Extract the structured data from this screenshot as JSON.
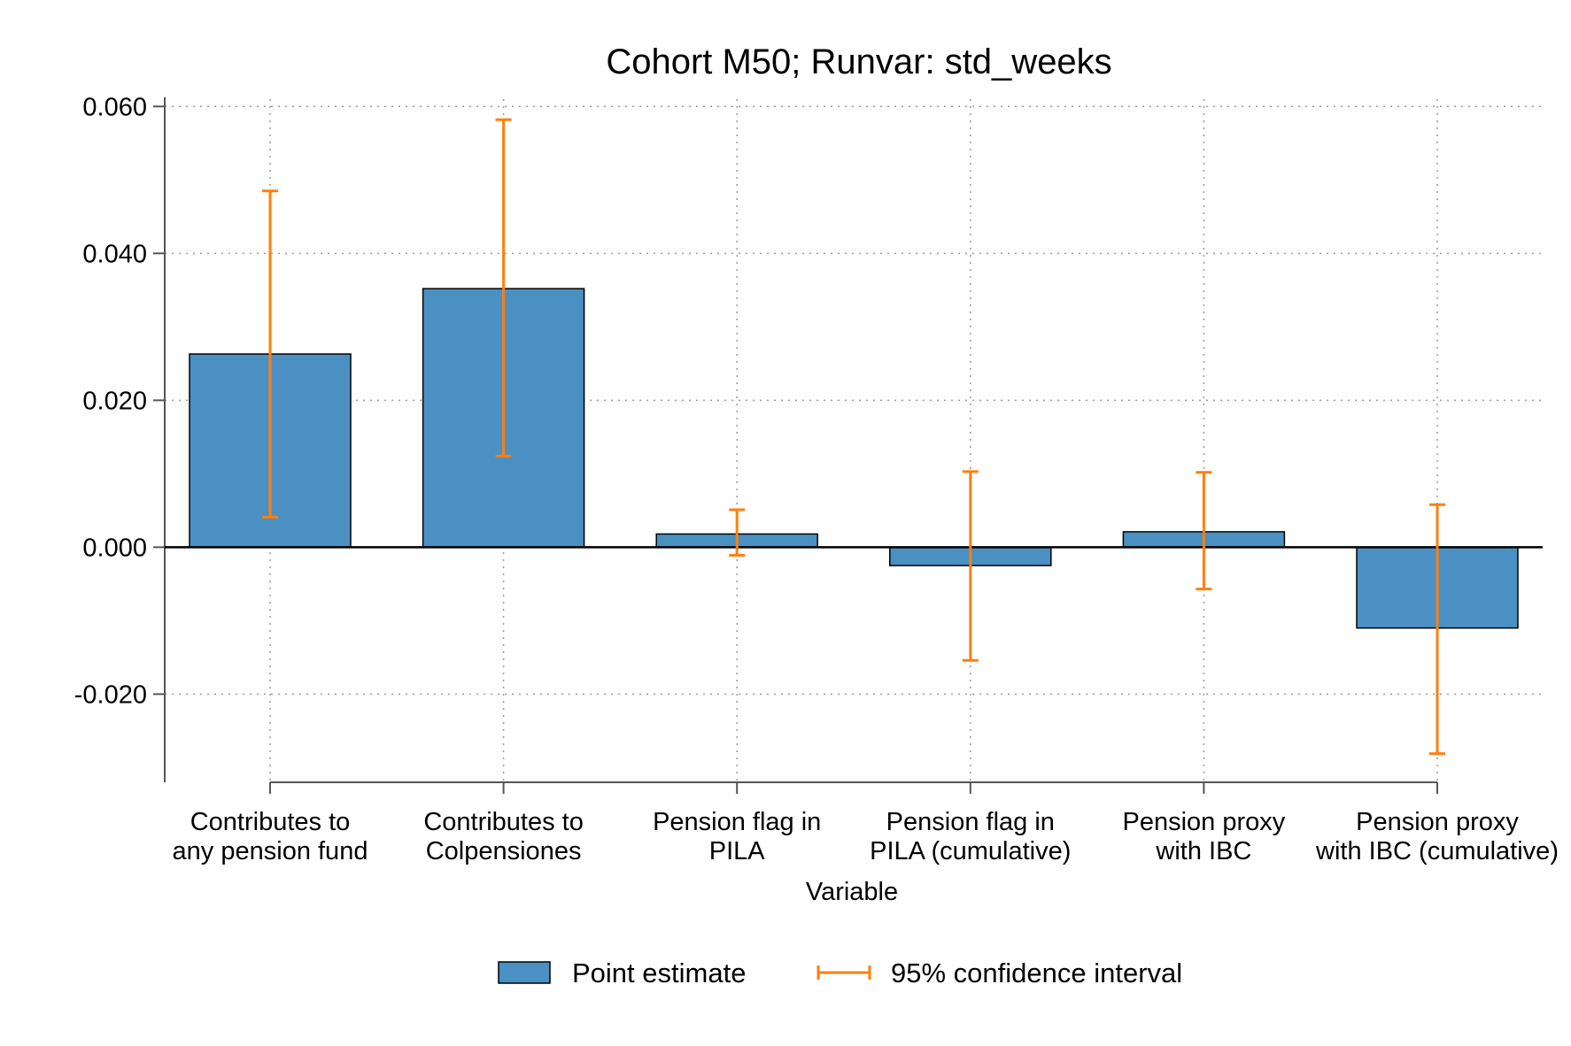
{
  "chart_data": {
    "type": "bar",
    "title": "Cohort M50; Runvar: std_weeks",
    "xlabel": "Variable",
    "ylabel": "",
    "ylim": [
      -0.032,
      0.061
    ],
    "yticks": [
      -0.02,
      0.0,
      0.02,
      0.04,
      0.06
    ],
    "ytick_labels": [
      "-0.020",
      "0.000",
      "0.020",
      "0.040",
      "0.060"
    ],
    "grid": true,
    "legend_position": "bottom",
    "categories": [
      [
        "Contributes to",
        "any pension fund"
      ],
      [
        "Contributes to",
        "Colpensiones"
      ],
      [
        "Pension flag in",
        "PILA"
      ],
      [
        "Pension flag in",
        "PILA (cumulative)"
      ],
      [
        "Pension proxy",
        "with IBC"
      ],
      [
        "Pension proxy",
        "with IBC (cumulative)"
      ]
    ],
    "series": [
      {
        "name": "Point estimate",
        "color": "#4a90c2",
        "values": [
          0.0263,
          0.0352,
          0.0018,
          -0.0025,
          0.0021,
          -0.011
        ]
      },
      {
        "name": "95% confidence interval",
        "color": "#ff7f0e",
        "lower": [
          0.0041,
          0.0124,
          -0.0011,
          -0.0154,
          -0.0057,
          -0.0281
        ],
        "upper": [
          0.0485,
          0.0582,
          0.0051,
          0.0103,
          0.0102,
          0.0058
        ]
      }
    ]
  }
}
